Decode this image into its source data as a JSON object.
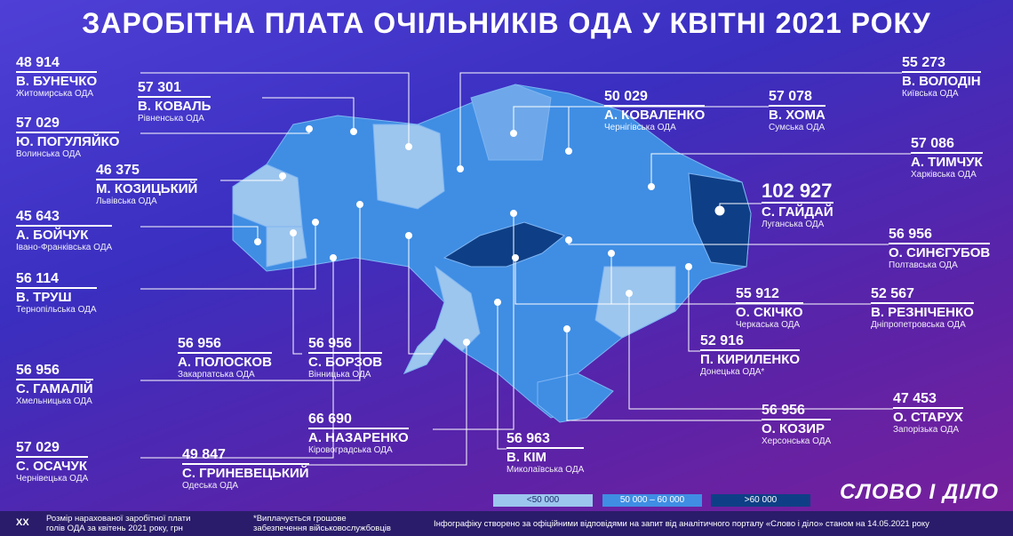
{
  "title": "ЗАРОБІТНА ПЛАТА ОЧІЛЬНИКІВ ОДА У КВІТНІ 2021 РОКУ",
  "colors": {
    "low": "#9cc6ee",
    "mid": "#3f8ee4",
    "high": "#0e3f86",
    "bg": "#4a37c8"
  },
  "cards": [
    {
      "id": "zhytomyr",
      "value": "48 914",
      "name": "В. БУНЕЧКО",
      "region": "Житомирська ОДА"
    },
    {
      "id": "rivne",
      "value": "57 301",
      "name": "В. КОВАЛЬ",
      "region": "Рівненська ОДА"
    },
    {
      "id": "volyn",
      "value": "57 029",
      "name": "Ю. ПОГУЛЯЙКО",
      "region": "Волинська ОДА"
    },
    {
      "id": "lviv",
      "value": "46 375",
      "name": "М. КОЗИЦЬКИЙ",
      "region": "Львівська ОДА"
    },
    {
      "id": "ifr",
      "value": "45 643",
      "name": "А. БОЙЧУК",
      "region": "Івано-Франківська ОДА"
    },
    {
      "id": "ternopil",
      "value": "56 114",
      "name": "В. ТРУШ",
      "region": "Тернопільська ОДА"
    },
    {
      "id": "zakarpattia",
      "value": "56 956",
      "name": "А. ПОЛОСКОВ",
      "region": "Закарпатська ОДА"
    },
    {
      "id": "vinnytsia",
      "value": "56 956",
      "name": "С. БОРЗОВ",
      "region": "Вінницька ОДА"
    },
    {
      "id": "khmelnytskyi",
      "value": "56 956",
      "name": "С. ГАМАЛІЙ",
      "region": "Хмельницька ОДА"
    },
    {
      "id": "kirovohrad",
      "value": "66 690",
      "name": "А. НАЗАРЕНКО",
      "region": "Кіровоградська ОДА"
    },
    {
      "id": "chernivtsi",
      "value": "57 029",
      "name": "С. ОСАЧУК",
      "region": "Чернівецька ОДА"
    },
    {
      "id": "odesa",
      "value": "49 847",
      "name": "С. ГРИНЕВЕЦЬКИЙ",
      "region": "Одеська ОДА"
    },
    {
      "id": "mykolaiv",
      "value": "56 963",
      "name": "В. КІМ",
      "region": "Миколаївська ОДА"
    },
    {
      "id": "chernihiv",
      "value": "50 029",
      "name": "А. КОВАЛЕНКО",
      "region": "Чернігівська ОДА"
    },
    {
      "id": "sumy",
      "value": "57 078",
      "name": "В. ХОМА",
      "region": "Сумська ОДА"
    },
    {
      "id": "kyiv",
      "value": "55 273",
      "name": "В. ВОЛОДІН",
      "region": "Київська ОДА"
    },
    {
      "id": "kharkiv",
      "value": "57 086",
      "name": "А. ТИМЧУК",
      "region": "Харківська ОДА"
    },
    {
      "id": "luhansk",
      "value": "102 927",
      "name": "С. ГАЙДАЙ",
      "region": "Луганська ОДА"
    },
    {
      "id": "poltava",
      "value": "56 956",
      "name": "О. СИНЄГУБОВ",
      "region": "Полтавська ОДА"
    },
    {
      "id": "cherkasy",
      "value": "55 912",
      "name": "О. СКІЧКО",
      "region": "Черкаська ОДА"
    },
    {
      "id": "dnipro",
      "value": "52 567",
      "name": "В. РЕЗНІЧЕНКО",
      "region": "Дніпропетровська ОДА"
    },
    {
      "id": "donetsk",
      "value": "52 916",
      "name": "П. КИРИЛЕНКО",
      "region": "Донецька ОДА*"
    },
    {
      "id": "zaporizhzhia",
      "value": "47 453",
      "name": "О. СТАРУХ",
      "region": "Запорізька ОДА"
    },
    {
      "id": "kherson",
      "value": "56 956",
      "name": "О. КОЗИР",
      "region": "Херсонська ОДА"
    }
  ],
  "legend": [
    {
      "label": "<50 000",
      "color": "#9cc6ee"
    },
    {
      "label": "50 000 – 60 000",
      "color": "#3f8ee4"
    },
    {
      "label": ">60 000",
      "color": "#0e3f86"
    }
  ],
  "logo": "СЛОВО І ДІЛО",
  "footer": {
    "marker": "XX",
    "note1_line1": "Розмір нарахованої заробітної плати",
    "note1_line2": "голів ОДА за квітень 2021 року, грн",
    "note2_line1": "*Виплачується грошове",
    "note2_line2": "забезпечення військовослужбовців",
    "source": "Інфографіку створено за офіційними відповідями на запит від аналітичного порталу «Слово і діло» станом на 14.05.2021 року"
  }
}
